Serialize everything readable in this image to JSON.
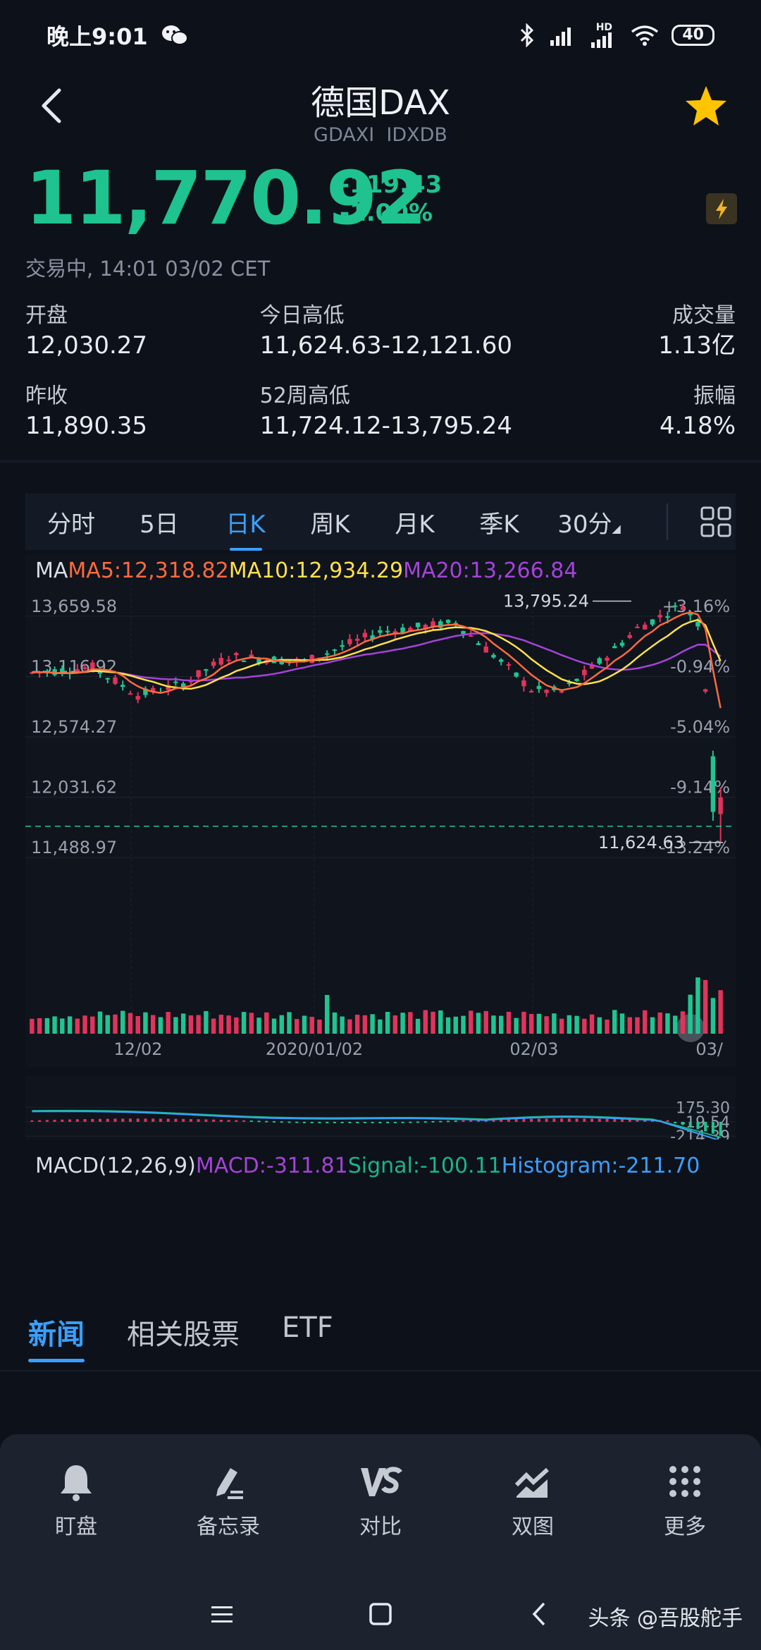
{
  "status_bar": {
    "time": "晚上9:01",
    "battery": "40",
    "network": "HD"
  },
  "header": {
    "title": "德国DAX",
    "subtitle": "GDAXI  IDXDB"
  },
  "quote": {
    "price": "11,770.92",
    "change": "-119.43",
    "change_pct": "-1.00%",
    "trade_status": "交易中, 14:01 03/02 CET"
  },
  "stats": [
    [
      {
        "label": "开盘",
        "value": "12,030.27"
      },
      {
        "label": "今日高低",
        "value": "11,624.63-12,121.60"
      },
      {
        "label": "成交量",
        "value": "1.13亿"
      }
    ],
    [
      {
        "label": "昨收",
        "value": "11,890.35"
      },
      {
        "label": "52周高低",
        "value": "11,724.12-13,795.24"
      },
      {
        "label": "振幅",
        "value": "4.18%"
      }
    ]
  ],
  "chart_tabs": [
    "分时",
    "5日",
    "日K",
    "周K",
    "月K",
    "季K",
    "30分"
  ],
  "chart_tabs_active": "日K",
  "ma_legend": {
    "ma": "MA",
    "ma5": "MA5:12,318.82",
    "ma10": "MA10:12,934.29",
    "ma20": "MA20:13,266.84"
  },
  "macd_legend": {
    "name": "MACD(12,26,9)",
    "macd": "MACD:-311.81",
    "signal": "Signal:-100.11",
    "histogram": "Histogram:-211.70"
  },
  "chart_data": {
    "type": "candlestick",
    "y_ticks": [
      "13,659.58",
      "13,116.92",
      "12,574.27",
      "12,031.62",
      "11,488.97"
    ],
    "y_ticks_values": [
      13659.58,
      13116.92,
      12574.27,
      12031.62,
      11488.97
    ],
    "pct_ticks": [
      "+3.16%",
      "-0.94%",
      "-5.04%",
      "-9.14%",
      "-13.24%"
    ],
    "pct_ticks_values": [
      3.16,
      -0.94,
      -5.04,
      -9.14,
      -13.24
    ],
    "x_labels": [
      "12/02",
      "2020/01/02",
      "02/03",
      "03/"
    ],
    "high_label": "13,795.24",
    "low_label": "11,624.63",
    "ylim": [
      11300,
      13900
    ],
    "macd_ticks": [
      "175.30",
      "-19.54",
      "-214.39"
    ],
    "macd_ticks_values": [
      175.3,
      -19.54,
      -214.39
    ],
    "colors": {
      "up": "#e2335a",
      "down": "#1fc591",
      "ma5": "#ff6a3d",
      "ma10": "#ffe14a",
      "ma20": "#a543d8",
      "macd": "#a543d8",
      "signal": "#19b58a",
      "histogram": "#3aa0ff"
    }
  },
  "news_tabs": [
    "新闻",
    "相关股票",
    "ETF"
  ],
  "news_tabs_active": "新闻",
  "toolbar": [
    {
      "label": "盯盘",
      "icon": "bell-icon"
    },
    {
      "label": "备忘录",
      "icon": "memo-icon"
    },
    {
      "label": "对比",
      "icon": "vs-icon"
    },
    {
      "label": "双图",
      "icon": "dual-chart-icon"
    },
    {
      "label": "更多",
      "icon": "more-grid-icon"
    }
  ],
  "watermark": "头条 @吾股舵手"
}
